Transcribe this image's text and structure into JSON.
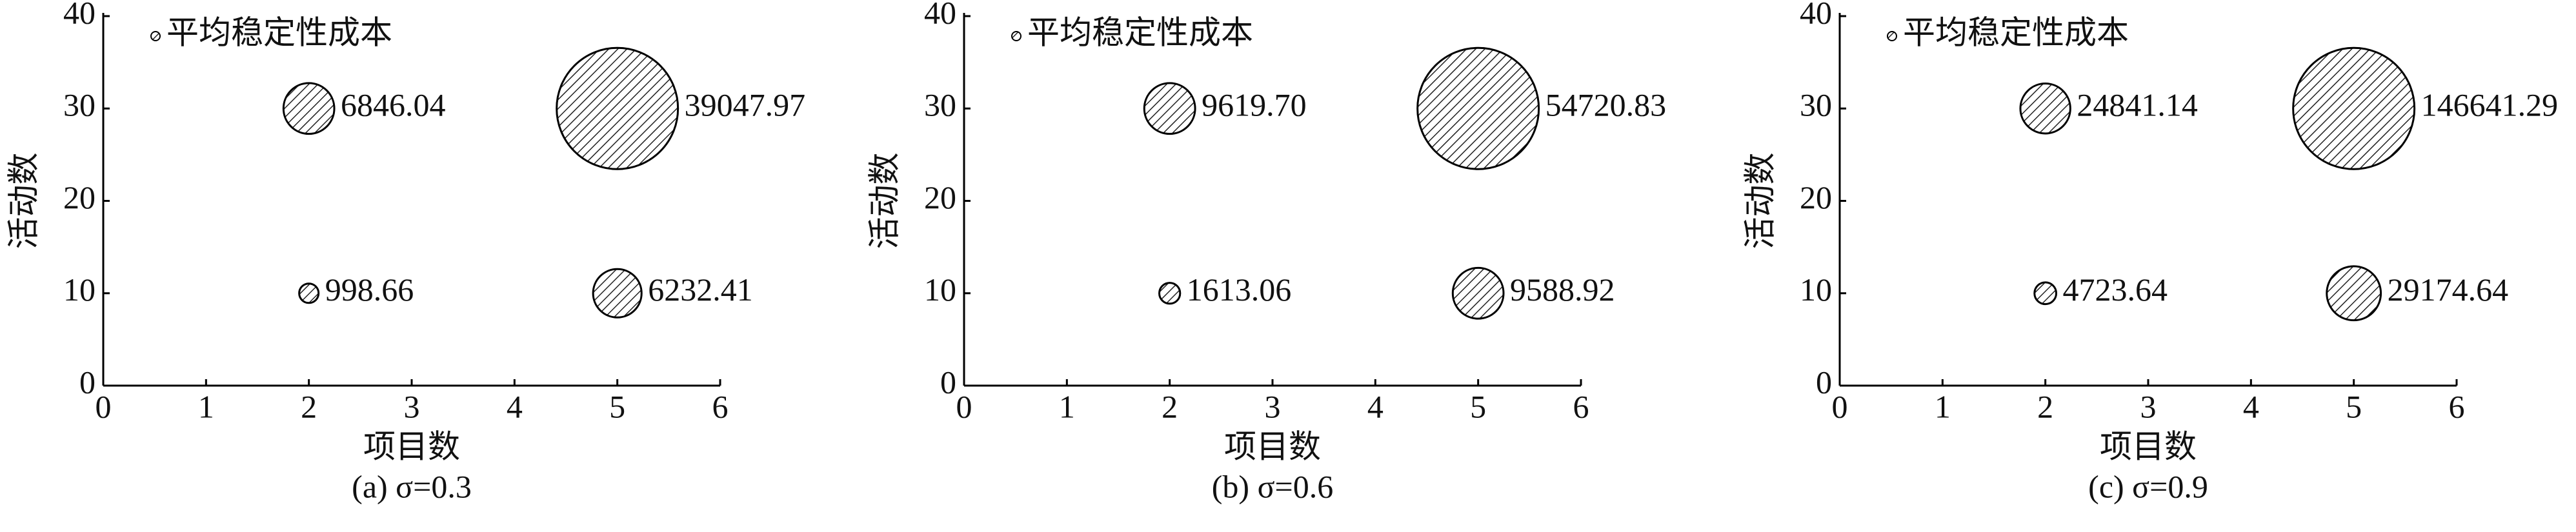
{
  "chart_data": [
    {
      "type": "scatter",
      "caption": "(a) σ=0.3",
      "xlabel": "项目数",
      "ylabel": "活动数",
      "xlim": [
        0,
        6
      ],
      "ylim": [
        0,
        40
      ],
      "xticks": [
        0,
        1,
        2,
        3,
        4,
        5,
        6
      ],
      "yticks": [
        0,
        10,
        20,
        30,
        40
      ],
      "series": [
        {
          "name": "平均稳定性成本",
          "color": "#000000",
          "x": [
            2,
            5,
            2,
            5
          ],
          "values": [
            10,
            10,
            30,
            30
          ],
          "sizes": [
            998.66,
            6232.41,
            6846.04,
            39047.97
          ],
          "value_labels": [
            "998.66",
            "6232.41",
            "6846.04",
            "39047.97"
          ]
        }
      ]
    },
    {
      "type": "scatter",
      "caption": "(b) σ=0.6",
      "xlabel": "项目数",
      "ylabel": "活动数",
      "xlim": [
        0,
        6
      ],
      "ylim": [
        0,
        40
      ],
      "xticks": [
        0,
        1,
        2,
        3,
        4,
        5,
        6
      ],
      "yticks": [
        0,
        10,
        20,
        30,
        40
      ],
      "series": [
        {
          "name": "平均稳定性成本",
          "color": "#000000",
          "x": [
            2,
            5,
            2,
            5
          ],
          "values": [
            10,
            10,
            30,
            30
          ],
          "sizes": [
            1613.06,
            9588.92,
            9619.7,
            54720.83
          ],
          "value_labels": [
            "1613.06",
            "9588.92",
            "9619.70",
            "54720.83"
          ]
        }
      ]
    },
    {
      "type": "scatter",
      "caption": "(c) σ=0.9",
      "xlabel": "项目数",
      "ylabel": "活动数",
      "xlim": [
        0,
        6
      ],
      "ylim": [
        0,
        40
      ],
      "xticks": [
        0,
        1,
        2,
        3,
        4,
        5,
        6
      ],
      "yticks": [
        0,
        10,
        20,
        30,
        40
      ],
      "series": [
        {
          "name": "平均稳定性成本",
          "color": "#000000",
          "x": [
            2,
            5,
            2,
            5
          ],
          "values": [
            10,
            10,
            30,
            30
          ],
          "sizes": [
            4723.64,
            29174.64,
            24841.14,
            146641.29
          ],
          "value_labels": [
            "4723.64",
            "29174.64",
            "24841.14",
            "146641.29"
          ]
        }
      ]
    }
  ]
}
